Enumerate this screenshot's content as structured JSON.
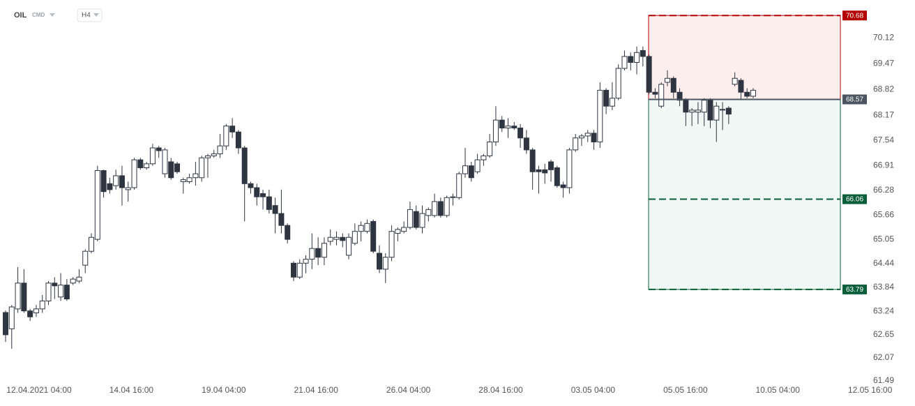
{
  "header": {
    "symbol": "OIL",
    "market": "CMD",
    "interval": "H4"
  },
  "chart_data": {
    "type": "candlestick",
    "up_color": "#ffffff",
    "down_color": "#2e3440",
    "ylim": [
      61.49,
      71.07
    ],
    "yticks": [
      {
        "value": 70.12,
        "label": "70.12"
      },
      {
        "value": 69.47,
        "label": "69.47"
      },
      {
        "value": 68.82,
        "label": "68.82"
      },
      {
        "value": 68.17,
        "label": "68.17"
      },
      {
        "value": 67.54,
        "label": "67.54"
      },
      {
        "value": 66.91,
        "label": "66.91"
      },
      {
        "value": 66.28,
        "label": "66.28"
      },
      {
        "value": 65.66,
        "label": "65.66"
      },
      {
        "value": 65.05,
        "label": "65.05"
      },
      {
        "value": 64.44,
        "label": "64.44"
      },
      {
        "value": 63.84,
        "label": "63.84"
      },
      {
        "value": 63.24,
        "label": "63.24"
      },
      {
        "value": 62.65,
        "label": "62.65"
      },
      {
        "value": 62.07,
        "label": "62.07"
      },
      {
        "value": 61.49,
        "label": "61.49"
      }
    ],
    "x_labels": [
      "12.04.2021  04:00",
      "14.04  16:00",
      "19.04  04:00",
      "21.04  16:00",
      "26.04  04:00",
      "28.04  16:00",
      "03.05  04:00",
      "05.05  16:00",
      "10.05  04:00",
      "12.05  16:00"
    ],
    "levels": [
      {
        "value": 70.68,
        "color": "#b30000",
        "style": "dashed"
      },
      {
        "value": 68.57,
        "color": "#4a5560",
        "style": "solid"
      },
      {
        "value": 66.06,
        "color": "#0b5e3a",
        "style": "dashed"
      },
      {
        "value": 63.79,
        "color": "#0b5e3a",
        "style": "dashed"
      }
    ],
    "ohlc": [
      [
        63.21,
        63.26,
        62.47,
        62.65
      ],
      [
        62.8,
        63.4,
        62.3,
        63.35
      ],
      [
        63.3,
        64.35,
        63.2,
        63.95
      ],
      [
        63.95,
        64.3,
        63.2,
        63.25
      ],
      [
        63.25,
        63.3,
        63.0,
        63.1
      ],
      [
        63.2,
        63.4,
        63.1,
        63.3
      ],
      [
        63.3,
        63.65,
        63.2,
        63.5
      ],
      [
        63.5,
        64.0,
        63.4,
        63.95
      ],
      [
        63.95,
        64.1,
        63.55,
        63.88
      ],
      [
        63.6,
        64.2,
        63.5,
        63.9
      ],
      [
        63.9,
        64.05,
        63.5,
        63.55
      ],
      [
        63.95,
        64.1,
        63.9,
        64.05
      ],
      [
        64.0,
        64.3,
        63.95,
        64.1
      ],
      [
        64.4,
        64.8,
        64.2,
        64.75
      ],
      [
        64.75,
        65.2,
        64.7,
        65.1
      ],
      [
        65.05,
        66.9,
        65.0,
        66.78
      ],
      [
        66.78,
        66.8,
        66.1,
        66.25
      ],
      [
        66.45,
        66.6,
        66.2,
        66.3
      ],
      [
        66.4,
        66.8,
        66.3,
        66.65
      ],
      [
        66.65,
        66.9,
        65.9,
        66.35
      ],
      [
        66.3,
        66.5,
        66.0,
        66.35
      ],
      [
        66.35,
        67.1,
        66.3,
        67.05
      ],
      [
        67.05,
        67.1,
        66.8,
        66.85
      ],
      [
        66.85,
        67.0,
        66.8,
        66.95
      ],
      [
        66.95,
        67.45,
        66.9,
        67.35
      ],
      [
        67.35,
        67.4,
        67.1,
        67.28
      ],
      [
        66.7,
        67.35,
        66.6,
        67.3
      ],
      [
        67.0,
        67.1,
        66.55,
        66.6
      ],
      [
        66.95,
        67.0,
        66.7,
        66.75
      ],
      [
        66.5,
        66.6,
        66.2,
        66.55
      ],
      [
        66.5,
        66.7,
        66.45,
        66.6
      ],
      [
        66.6,
        67.0,
        66.4,
        66.7
      ],
      [
        66.6,
        67.15,
        66.5,
        67.1
      ],
      [
        67.1,
        67.2,
        66.6,
        67.15
      ],
      [
        67.15,
        67.3,
        67.1,
        67.2
      ],
      [
        67.2,
        67.7,
        67.1,
        67.4
      ],
      [
        67.4,
        67.95,
        67.3,
        67.9
      ],
      [
        67.9,
        68.1,
        67.6,
        67.75
      ],
      [
        67.75,
        67.8,
        67.2,
        67.35
      ],
      [
        67.35,
        67.4,
        65.5,
        66.45
      ],
      [
        66.45,
        66.5,
        66.2,
        66.35
      ],
      [
        66.35,
        66.45,
        65.9,
        66.12
      ],
      [
        66.2,
        66.3,
        65.8,
        66.12
      ],
      [
        66.12,
        66.3,
        65.7,
        65.8
      ],
      [
        65.9,
        66.1,
        65.2,
        65.7
      ],
      [
        65.7,
        66.3,
        65.2,
        65.4
      ],
      [
        65.4,
        65.45,
        64.95,
        65.05
      ],
      [
        64.45,
        64.5,
        64.0,
        64.1
      ],
      [
        64.1,
        64.55,
        64.05,
        64.45
      ],
      [
        64.45,
        64.65,
        64.2,
        64.55
      ],
      [
        64.55,
        65.2,
        64.3,
        64.82
      ],
      [
        64.82,
        65.1,
        64.4,
        64.6
      ],
      [
        64.6,
        65.1,
        64.4,
        64.95
      ],
      [
        65.0,
        65.3,
        64.9,
        65.1
      ],
      [
        65.05,
        65.25,
        64.9,
        65.1
      ],
      [
        65.1,
        65.2,
        64.85,
        65.02
      ],
      [
        64.65,
        65.2,
        64.55,
        65.1
      ],
      [
        64.95,
        65.45,
        64.9,
        65.25
      ],
      [
        65.25,
        65.5,
        65.0,
        65.4
      ],
      [
        65.25,
        65.55,
        65.2,
        65.45
      ],
      [
        65.5,
        65.55,
        64.7,
        64.75
      ],
      [
        64.7,
        64.9,
        64.2,
        64.3
      ],
      [
        64.3,
        64.7,
        63.95,
        64.6
      ],
      [
        64.6,
        65.4,
        64.5,
        65.25
      ],
      [
        65.2,
        65.35,
        65.0,
        65.3
      ],
      [
        65.25,
        65.5,
        65.2,
        65.35
      ],
      [
        65.35,
        66.0,
        65.3,
        65.8
      ],
      [
        65.75,
        65.9,
        65.3,
        65.35
      ],
      [
        65.35,
        65.9,
        65.2,
        65.7
      ],
      [
        65.65,
        65.85,
        65.5,
        65.8
      ],
      [
        65.65,
        66.2,
        65.6,
        66.0
      ],
      [
        66.0,
        66.1,
        65.6,
        65.65
      ],
      [
        65.65,
        66.15,
        65.6,
        66.1
      ],
      [
        66.1,
        66.2,
        65.9,
        66.12
      ],
      [
        66.1,
        66.75,
        66.05,
        66.7
      ],
      [
        66.7,
        67.35,
        66.6,
        66.9
      ],
      [
        66.9,
        67.0,
        66.5,
        66.6
      ],
      [
        66.75,
        67.2,
        66.7,
        67.05
      ],
      [
        67.05,
        67.2,
        66.9,
        67.15
      ],
      [
        67.15,
        67.7,
        67.1,
        67.5
      ],
      [
        67.5,
        68.4,
        67.4,
        68.05
      ],
      [
        68.05,
        68.15,
        67.75,
        67.85
      ],
      [
        67.85,
        68.1,
        67.6,
        67.9
      ],
      [
        67.9,
        68.0,
        67.8,
        67.85
      ],
      [
        67.85,
        67.95,
        67.35,
        67.6
      ],
      [
        67.6,
        67.8,
        67.2,
        67.3
      ],
      [
        67.3,
        67.35,
        66.3,
        66.75
      ],
      [
        66.8,
        66.9,
        66.2,
        66.75
      ],
      [
        66.8,
        66.95,
        66.45,
        66.72
      ],
      [
        67.0,
        67.05,
        66.5,
        66.8
      ],
      [
        66.85,
        66.9,
        66.35,
        66.4
      ],
      [
        66.42,
        66.5,
        66.1,
        66.35
      ],
      [
        66.35,
        67.35,
        66.2,
        67.3
      ],
      [
        67.3,
        67.7,
        67.25,
        67.6
      ],
      [
        67.6,
        67.7,
        67.4,
        67.65
      ],
      [
        67.65,
        67.8,
        67.5,
        67.72
      ],
      [
        67.72,
        67.8,
        67.3,
        67.5
      ],
      [
        67.5,
        69.0,
        67.35,
        68.8
      ],
      [
        68.8,
        68.85,
        68.2,
        68.4
      ],
      [
        68.4,
        69.0,
        68.3,
        68.6
      ],
      [
        68.6,
        69.45,
        68.55,
        69.35
      ],
      [
        69.35,
        69.8,
        69.3,
        69.65
      ],
      [
        69.65,
        69.75,
        69.3,
        69.5
      ],
      [
        69.5,
        69.9,
        69.2,
        69.75
      ],
      [
        69.8,
        69.9,
        69.4,
        69.65
      ],
      [
        69.65,
        69.7,
        68.7,
        68.75
      ],
      [
        68.75,
        68.85,
        68.6,
        68.7
      ],
      [
        68.4,
        69.0,
        68.35,
        68.95
      ],
      [
        69.0,
        69.3,
        68.9,
        69.1
      ],
      [
        69.1,
        69.15,
        68.6,
        68.75
      ],
      [
        68.75,
        68.85,
        68.4,
        68.55
      ],
      [
        68.55,
        68.6,
        67.9,
        68.25
      ],
      [
        68.25,
        68.35,
        67.9,
        68.3
      ],
      [
        68.25,
        68.5,
        67.95,
        68.3
      ],
      [
        68.25,
        68.6,
        67.9,
        68.55
      ],
      [
        68.55,
        68.6,
        67.85,
        68.05
      ],
      [
        68.05,
        68.5,
        67.5,
        68.4
      ],
      [
        68.3,
        68.5,
        67.8,
        68.32
      ],
      [
        68.35,
        68.4,
        67.95,
        68.2
      ],
      [
        68.95,
        69.25,
        68.9,
        69.1
      ],
      [
        69.05,
        69.1,
        68.55,
        68.75
      ],
      [
        68.75,
        68.85,
        68.6,
        68.65
      ],
      [
        68.65,
        68.85,
        68.6,
        68.8
      ]
    ]
  }
}
